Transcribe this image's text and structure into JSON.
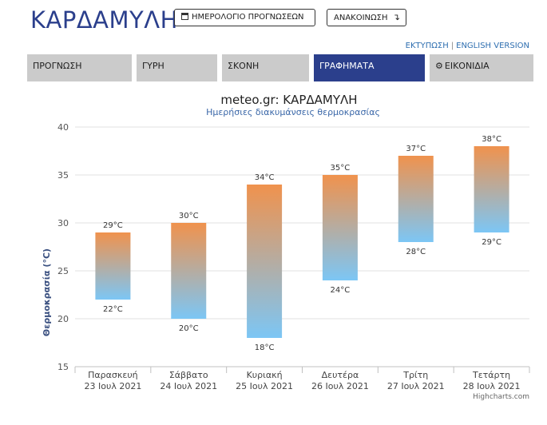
{
  "header": {
    "title": "ΚΑΡΔΑΜΥΛΗ",
    "forecast_calendar_label": "ΗΜΕΡΟΛΟΓΙΟ ΠΡΟΓΝΩΣΕΩΝ",
    "announcement_label": "ΑΝΑΚΟΙΝΩΣΗ",
    "print_link": "ΕΚΤΥΠΩΣΗ",
    "link_separator": "|",
    "english_link": "ENGLISH VERSION"
  },
  "tabs": [
    {
      "label": "ΠΡΟΓΝΩΣΗ",
      "active": false
    },
    {
      "label": "ΓΥΡΗ",
      "active": false
    },
    {
      "label": "ΣΚΟΝΗ",
      "active": false
    },
    {
      "label": "ΓΡΑΦΗΜΑΤΑ",
      "active": true
    },
    {
      "label": "ΕΙΚΟΝΙΔΙΑ",
      "active": false
    }
  ],
  "icons": {
    "calendar": "calendar-icon",
    "announcement": "arrow-return-icon",
    "icons_tab": "gear-icon"
  },
  "chart_data": {
    "type": "bar",
    "title": "meteo.gr: ΚΑΡΔΑΜΥΛΗ",
    "subtitle": "Ημερήσιες διακυμάνσεις θερμοκρασίας",
    "ylabel": "Θερμοκρασία (°C)",
    "ylim": [
      15,
      40
    ],
    "yticks": [
      15,
      20,
      25,
      30,
      35,
      40
    ],
    "categories": [
      [
        "Παρασκευή",
        "23 Ιουλ 2021"
      ],
      [
        "Σάββατο",
        "24 Ιουλ 2021"
      ],
      [
        "Κυριακή",
        "25 Ιουλ 2021"
      ],
      [
        "Δευτέρα",
        "26 Ιουλ 2021"
      ],
      [
        "Τρίτη",
        "27 Ιουλ 2021"
      ],
      [
        "Τετάρτη",
        "28 Ιουλ 2021"
      ]
    ],
    "series": [
      {
        "low": [
          22,
          20,
          18,
          24,
          28,
          29
        ],
        "high": [
          29,
          30,
          34,
          35,
          37,
          38
        ]
      }
    ],
    "unit": "°C",
    "credits": "Highcharts.com",
    "grid": true,
    "colors": {
      "high": "#f0924d",
      "low": "#7cc6f5",
      "grid": "#e0e0e0",
      "subtitle": "#3a67a8",
      "ylabel": "#3a5080"
    }
  }
}
